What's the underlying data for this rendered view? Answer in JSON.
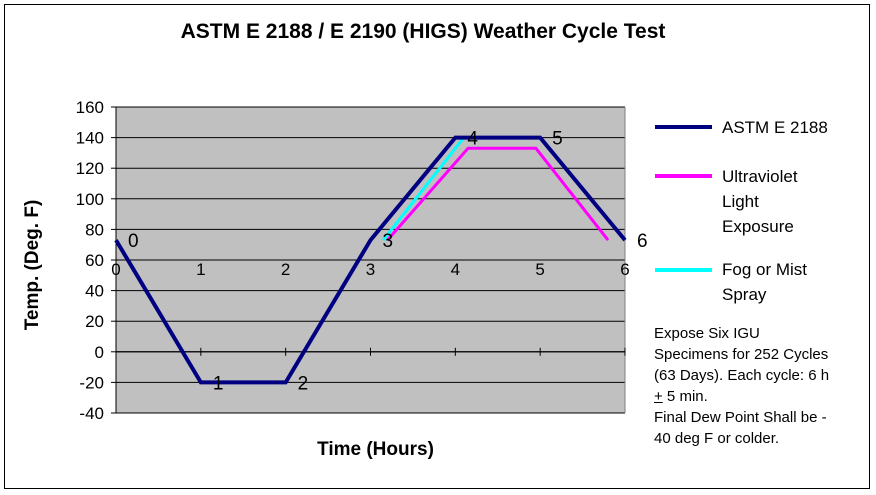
{
  "chart_data": {
    "type": "line",
    "title": "ASTM E 2188 / E 2190 (HIGS) Weather Cycle Test",
    "xlabel": "Time (Hours)",
    "ylabel": "Temp. (Deg. F)",
    "xlim": [
      0,
      6
    ],
    "ylim": [
      -40,
      160
    ],
    "x_ticks": [
      "0",
      "1",
      "2",
      "3",
      "4",
      "5",
      "6"
    ],
    "y_ticks": [
      "160",
      "140",
      "120",
      "100",
      "80",
      "60",
      "40",
      "20",
      "0",
      "-20",
      "-40"
    ],
    "y_tick_values": [
      160,
      140,
      120,
      100,
      80,
      60,
      40,
      20,
      0,
      -20,
      -40
    ],
    "grid": true,
    "plot_background": "#c0c0c0",
    "legend_position": "right",
    "series": [
      {
        "name": "ASTM E 2188",
        "color": "#000080",
        "points": [
          [
            0,
            73
          ],
          [
            1,
            -20
          ],
          [
            2,
            -20
          ],
          [
            3,
            73
          ],
          [
            4,
            140
          ],
          [
            5,
            140
          ],
          [
            6,
            73
          ]
        ]
      },
      {
        "name": "Ultraviolet Light Exposure",
        "color": "#ff00ff",
        "points": [
          [
            3.2,
            73
          ],
          [
            4.15,
            133
          ],
          [
            4.95,
            133
          ],
          [
            5.8,
            73
          ]
        ]
      },
      {
        "name": "Fog or Mist Spray",
        "color": "#00ffff",
        "points": [
          [
            3.15,
            73
          ],
          [
            4.1,
            140
          ]
        ]
      }
    ],
    "point_labels": [
      {
        "text": "0",
        "x": 0,
        "y": 73
      },
      {
        "text": "1",
        "x": 1,
        "y": -20
      },
      {
        "text": "2",
        "x": 2,
        "y": -20
      },
      {
        "text": "3",
        "x": 3,
        "y": 73
      },
      {
        "text": "4",
        "x": 4,
        "y": 140
      },
      {
        "text": "5",
        "x": 5,
        "y": 140
      },
      {
        "text": "6",
        "x": 6,
        "y": 73
      }
    ]
  },
  "legend": {
    "items": [
      {
        "lines": [
          "ASTM E 2188"
        ],
        "color": "#000080"
      },
      {
        "lines": [
          "Ultraviolet",
          "Light",
          "Exposure"
        ],
        "color": "#ff00ff"
      },
      {
        "lines": [
          "Fog or Mist",
          "Spray"
        ],
        "color": "#00ffff"
      }
    ]
  },
  "note": {
    "line1": "Expose Six IGU",
    "line2": "Specimens for 252 Cycles",
    "line3": "(63 Days).  Each cycle: 6 h",
    "line4_pm": "+",
    "line4_rest": " 5 min.",
    "line5": "Final Dew Point Shall be -",
    "line6": "40 deg F or colder."
  }
}
